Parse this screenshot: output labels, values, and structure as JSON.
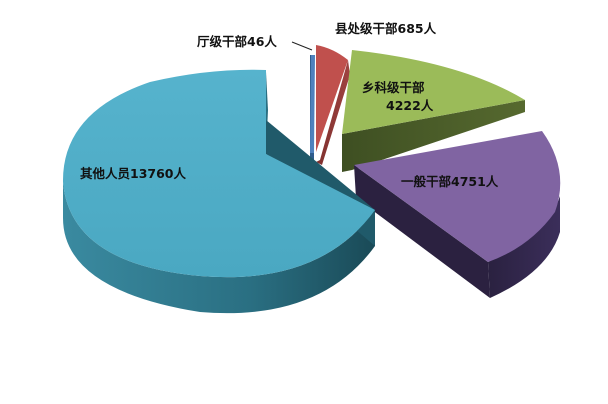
{
  "chart_data": {
    "type": "pie",
    "style": "3d-exploded",
    "slices": [
      {
        "name": "厅级干部",
        "value": 46,
        "label_lines": [
          "厅级干部46人"
        ],
        "color": "#4F81BD"
      },
      {
        "name": "县处级干部",
        "value": 685,
        "label_lines": [
          "县处级干部685人"
        ],
        "color": "#C0504D"
      },
      {
        "name": "乡科级干部",
        "value": 4222,
        "label_lines": [
          "乡科级干部",
          "4222人"
        ],
        "color": "#9BBB59"
      },
      {
        "name": "一般干部",
        "value": 4751,
        "label_lines": [
          "一般干部4751人"
        ],
        "color": "#8064A2"
      },
      {
        "name": "其他人员",
        "value": 13760,
        "label_lines": [
          "其他人员13760人"
        ],
        "color": "#4BACC6"
      }
    ]
  }
}
